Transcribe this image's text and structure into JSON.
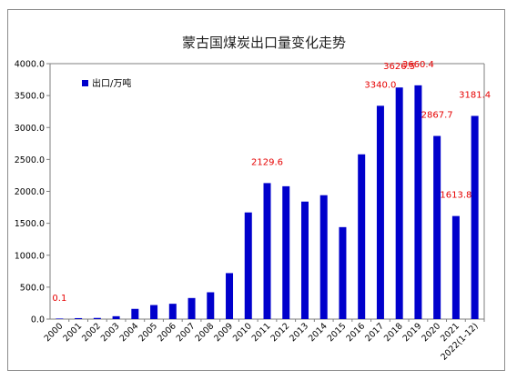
{
  "chart_data": {
    "type": "bar",
    "title": "蒙古国煤炭出口量变化走势",
    "xlabel": "",
    "ylabel": "",
    "ylim": [
      0,
      4000
    ],
    "yticks": [
      "0.0",
      "500.0",
      "1000.0",
      "1500.0",
      "2000.0",
      "2500.0",
      "3000.0",
      "3500.0",
      "4000.0"
    ],
    "grid": false,
    "legend_position": "top-left",
    "categories": [
      "2000",
      "2001",
      "2002",
      "2003",
      "2004",
      "2005",
      "2006",
      "2007",
      "2008",
      "2009",
      "2010",
      "2011",
      "2012",
      "2013",
      "2014",
      "2015",
      "2016",
      "2017",
      "2018",
      "2019",
      "2020",
      "2021",
      "2022(1-12)"
    ],
    "series": [
      {
        "name": "出口/万吨",
        "color": "#0000cc",
        "values": [
          0.1,
          15,
          18,
          45,
          160,
          220,
          240,
          330,
          420,
          720,
          1670,
          2129.6,
          2080,
          1840,
          1940,
          1440,
          2580,
          3340.0,
          3626.5,
          3660.4,
          2867.7,
          1613.8,
          3181.4
        ]
      }
    ],
    "data_labels": [
      {
        "index": 0,
        "text": "0.1"
      },
      {
        "index": 11,
        "text": "2129.6"
      },
      {
        "index": 17,
        "text": "3340.0"
      },
      {
        "index": 18,
        "text": "3626.5"
      },
      {
        "index": 19,
        "text": "3660.4"
      },
      {
        "index": 20,
        "text": "2867.7"
      },
      {
        "index": 21,
        "text": "1613.8"
      },
      {
        "index": 22,
        "text": "3181.4"
      }
    ],
    "label_color": "#e60000",
    "axis_color": "#7f7f7f"
  }
}
